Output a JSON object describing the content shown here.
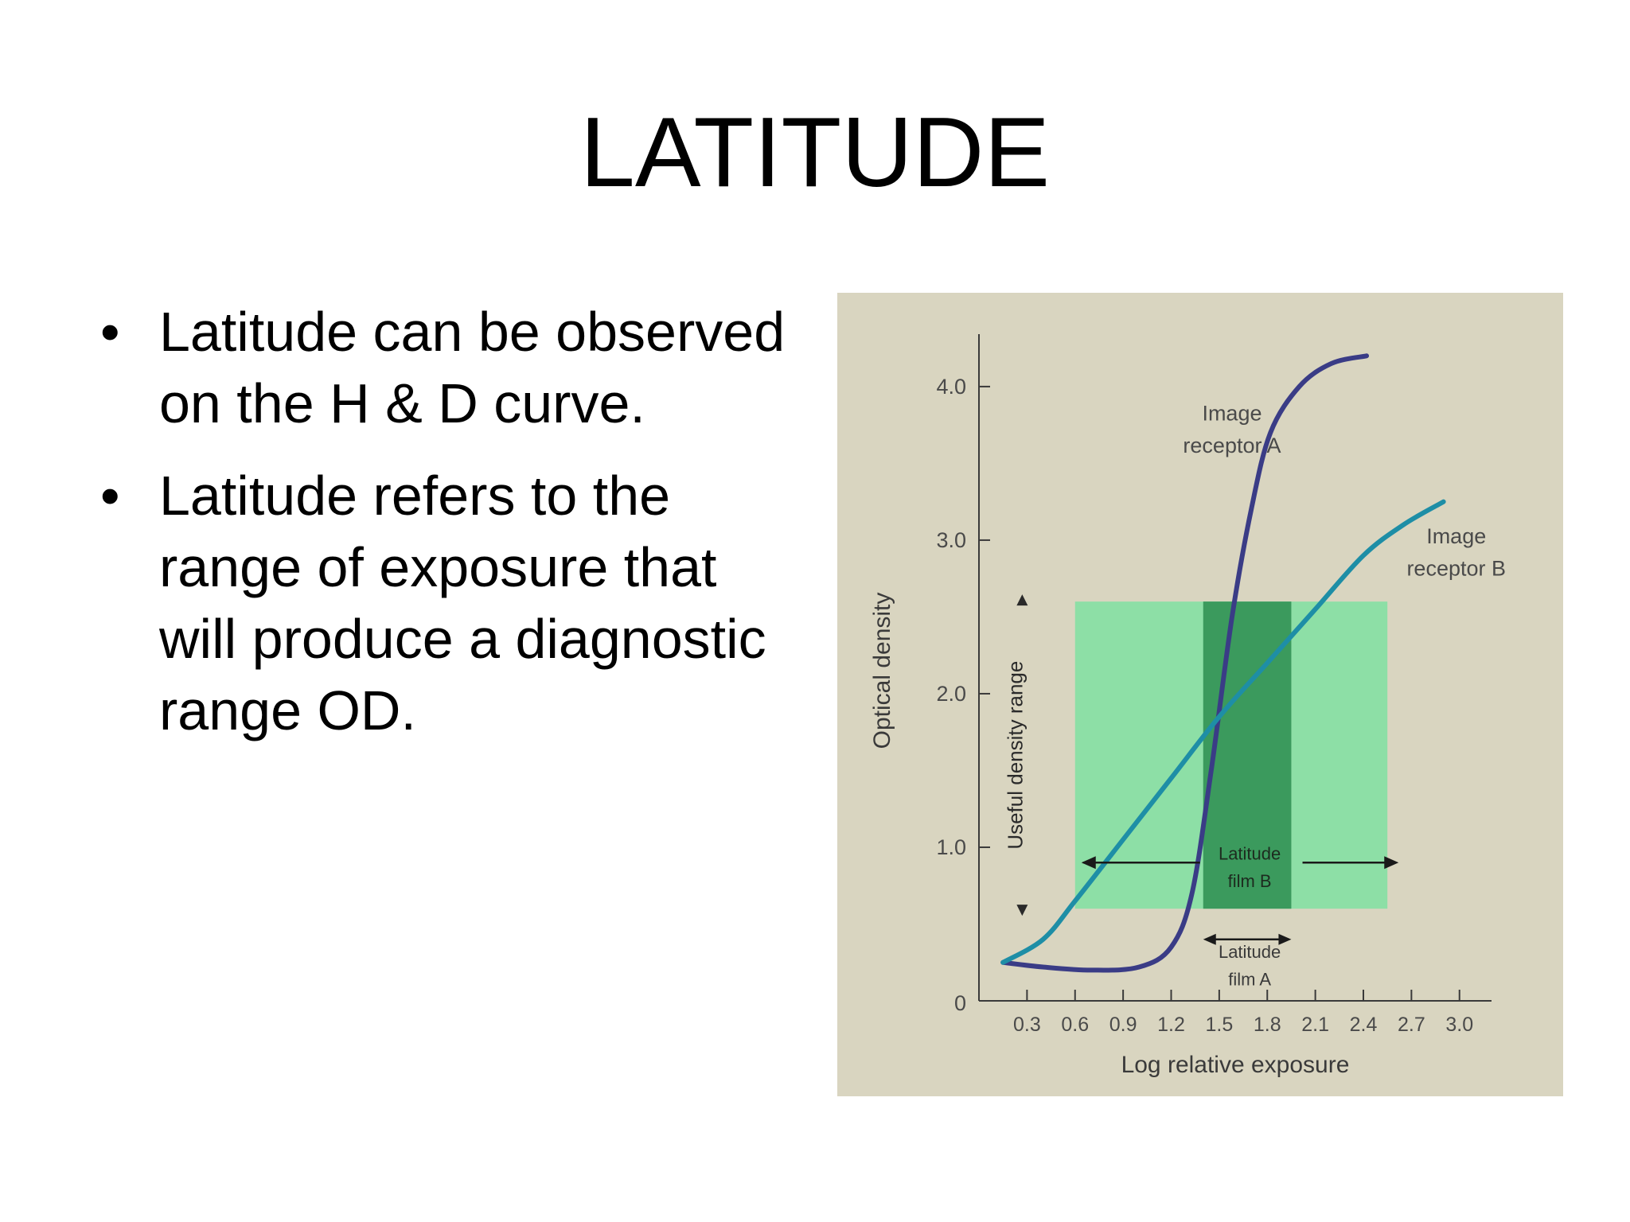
{
  "slide": {
    "title": "LATITUDE",
    "bullets": [
      "Latitude can be observed on the H & D curve.",
      "Latitude refers to the range of exposure that will produce a diagnostic range OD."
    ]
  },
  "chart_data": {
    "type": "line",
    "xlabel": "Log relative exposure",
    "ylabel": "Optical density",
    "xlim": [
      0,
      3.2
    ],
    "ylim": [
      0,
      4.3
    ],
    "x_ticks": [
      "0.3",
      "0.6",
      "0.9",
      "1.2",
      "1.5",
      "1.8",
      "2.1",
      "2.4",
      "2.7",
      "3.0"
    ],
    "y_ticks": [
      "0",
      "1.0",
      "2.0",
      "3.0",
      "4.0"
    ],
    "series": [
      {
        "name": "Image receptor A",
        "label_lines": [
          "Image",
          "receptor A"
        ],
        "color": "#3a3c86",
        "points": [
          [
            0.15,
            0.25
          ],
          [
            0.4,
            0.22
          ],
          [
            0.7,
            0.2
          ],
          [
            1.0,
            0.22
          ],
          [
            1.2,
            0.35
          ],
          [
            1.33,
            0.7
          ],
          [
            1.45,
            1.5
          ],
          [
            1.58,
            2.5
          ],
          [
            1.7,
            3.2
          ],
          [
            1.82,
            3.7
          ],
          [
            2.0,
            4.0
          ],
          [
            2.2,
            4.15
          ],
          [
            2.42,
            4.2
          ]
        ]
      },
      {
        "name": "Image receptor B",
        "label_lines": [
          "Image",
          "receptor B"
        ],
        "color": "#1e8ea6",
        "points": [
          [
            0.15,
            0.25
          ],
          [
            0.4,
            0.4
          ],
          [
            0.6,
            0.65
          ],
          [
            0.9,
            1.05
          ],
          [
            1.2,
            1.45
          ],
          [
            1.5,
            1.85
          ],
          [
            1.8,
            2.2
          ],
          [
            2.1,
            2.55
          ],
          [
            2.4,
            2.9
          ],
          [
            2.65,
            3.1
          ],
          [
            2.9,
            3.25
          ]
        ]
      }
    ],
    "useful_density_range": {
      "label": "Useful density range",
      "od": [
        0.6,
        2.6
      ]
    },
    "latitude_film_B": {
      "label_lines": [
        "Latitude",
        "film B"
      ],
      "exposure": [
        0.6,
        2.55
      ]
    },
    "latitude_film_A": {
      "label_lines": [
        "Latitude",
        "film A"
      ],
      "exposure": [
        1.4,
        1.95
      ]
    },
    "grid": false,
    "colors": {
      "background": "#d9d5c0",
      "band_light": "#8ddfa6",
      "band_dark": "#3b9a5d",
      "axis": "#3a3a3a"
    }
  }
}
